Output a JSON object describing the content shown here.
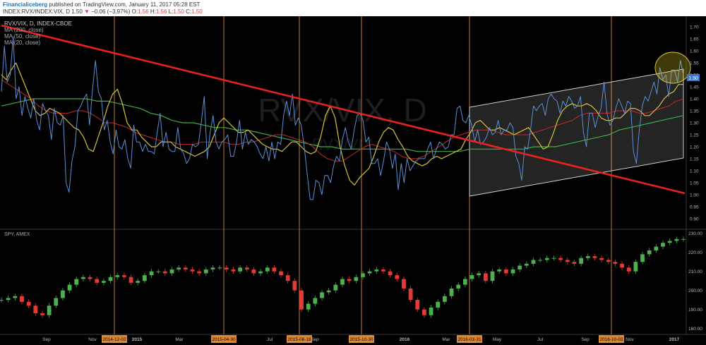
{
  "header": {
    "brand": "Financialiceberg",
    "published": "published on TradingView.com, January 11, 2017 05:28 EST",
    "symbol": "INDEX:RVX/INDEX:VIX, D",
    "last": "1.50",
    "change": "−0.06 (−3.97%)",
    "o_label": "O:",
    "o_val": "1.56",
    "h_label": "H:",
    "h_val": "1.56",
    "l_label": "L:",
    "l_val": "1.50",
    "c_label": "C:",
    "c_val": "1.50"
  },
  "chart_data": [
    {
      "type": "line",
      "pane": "top",
      "title": "RVX/VIX, D, INDEX-CBOE",
      "watermark": "RVX/VIX, D",
      "watermark_sub": "RVX/VIX",
      "legend": [
        "MA (200, close)",
        "MA (50, close)",
        "MA (20, close)"
      ],
      "ylim": [
        0.87,
        1.73
      ],
      "yticks": [
        "1.70",
        "1.65",
        "1.60",
        "1.55",
        "1.50",
        "1.45",
        "1.40",
        "1.35",
        "1.30",
        "1.25",
        "1.20",
        "1.15",
        "1.10",
        "1.05",
        "1.00",
        "0.95",
        "0.90"
      ],
      "price_tag": "1.50",
      "colors": {
        "ratio": "#5b8fd6",
        "ma20": "#d4c13a",
        "ma50": "#c62828",
        "ma200": "#3fae3f",
        "trend": "#e82020",
        "channel": "#cccccc"
      },
      "series": [
        {
          "name": "RVX/VIX",
          "values": [
            1.43,
            1.62,
            1.47,
            1.5,
            1.66,
            1.4,
            1.45,
            1.33,
            1.41,
            1.36,
            1.32,
            1.4,
            1.31,
            1.27,
            1.38,
            1.35,
            1.33,
            1.23,
            1.36,
            1.3,
            1.29,
            1.33,
            1.05,
            1.01,
            1.14,
            1.2,
            1.35,
            1.37,
            1.4,
            1.42,
            1.29,
            1.44,
            1.56,
            1.43,
            1.4,
            1.27,
            1.31,
            1.22,
            1.17,
            1.27,
            1.2,
            1.19,
            1.23,
            1.15,
            1.11,
            1.29,
            1.22,
            1.22,
            1.18,
            1.21,
            1.18,
            1.18,
            1.17,
            1.26,
            1.34,
            1.2,
            1.26,
            1.19,
            1.18,
            1.18,
            1.28,
            1.19,
            1.17,
            1.13,
            1.15,
            1.21,
            1.2,
            1.21,
            1.3,
            1.41,
            1.15,
            1.26,
            1.33,
            1.22,
            1.19,
            1.22,
            1.23,
            1.25,
            1.16,
            1.16,
            1.22,
            1.31,
            1.19,
            1.26,
            1.21,
            1.23,
            1.22,
            1.2,
            1.17,
            1.15,
            1.2,
            1.14,
            1.22,
            1.15,
            1.22,
            1.21,
            1.33,
            1.39,
            1.33,
            1.42,
            1.29,
            1.32,
            1.29,
            1.2,
            1.09,
            0.98,
            0.98,
            1.06,
            1.05,
            1.0,
            1.08,
            1.08,
            1.05,
            1.12,
            1.16,
            1.14,
            1.23,
            1.28,
            1.22,
            1.19,
            1.27,
            1.33,
            1.34,
            1.31,
            1.22,
            1.24,
            1.13,
            1.13,
            1.15,
            1.08,
            1.14,
            1.22,
            1.19,
            1.11,
            1.17,
            1.02,
            1.13,
            1.05,
            1.15,
            1.1,
            1.12,
            1.14,
            1.15,
            1.15,
            1.15,
            1.19,
            1.22,
            1.15,
            1.19,
            1.22,
            1.21,
            1.19,
            1.2,
            1.25,
            1.25,
            1.36,
            1.37,
            1.31,
            1.3,
            1.33,
            1.29,
            1.22,
            1.27,
            1.21,
            1.22,
            1.24,
            1.28,
            1.25,
            1.26,
            1.31,
            1.25,
            1.27,
            1.27,
            1.3,
            1.28,
            1.16,
            1.13,
            1.06,
            1.2,
            1.19,
            1.27,
            1.37,
            1.35,
            1.37,
            1.38,
            1.33,
            1.4,
            1.42,
            1.4,
            1.39,
            1.34,
            1.39,
            1.37,
            1.41,
            1.39,
            1.36,
            1.37,
            1.41,
            1.26,
            1.2,
            1.34,
            1.34,
            1.28,
            1.33,
            1.36,
            1.47,
            1.34,
            1.29,
            1.31,
            1.36,
            1.4,
            1.37,
            1.34,
            1.39,
            1.38,
            1.18,
            1.13,
            1.27,
            1.37,
            1.41,
            1.39,
            1.43,
            1.47,
            1.42,
            1.53,
            1.48,
            1.5,
            1.41,
            1.52,
            1.52,
            1.47,
            1.56,
            1.5
          ]
        },
        {
          "name": "MA (20, close)",
          "values": [
            1.5,
            1.48,
            1.52,
            1.55,
            1.5,
            1.45,
            1.4,
            1.35,
            1.33,
            1.34,
            1.36,
            1.35,
            1.34,
            1.32,
            1.3,
            1.28,
            1.27,
            1.24,
            1.19,
            1.18,
            1.24,
            1.3,
            1.37,
            1.42,
            1.44,
            1.38,
            1.3,
            1.27,
            1.27,
            1.24,
            1.22,
            1.2,
            1.2,
            1.22,
            1.22,
            1.22,
            1.2,
            1.19,
            1.18,
            1.17,
            1.16,
            1.17,
            1.18,
            1.2,
            1.25,
            1.3,
            1.32,
            1.3,
            1.28,
            1.26,
            1.26,
            1.27,
            1.25,
            1.23,
            1.21,
            1.2,
            1.19,
            1.19,
            1.18,
            1.2,
            1.22,
            1.22,
            1.2,
            1.18,
            1.17,
            1.18,
            1.24,
            1.33,
            1.37,
            1.32,
            1.2,
            1.12,
            1.06,
            1.04,
            1.07,
            1.09,
            1.11,
            1.16,
            1.22,
            1.26,
            1.28,
            1.27,
            1.23,
            1.2,
            1.16,
            1.14,
            1.13,
            1.12,
            1.13,
            1.15,
            1.16,
            1.15,
            1.16,
            1.17,
            1.18,
            1.19,
            1.23,
            1.26,
            1.3,
            1.31,
            1.29,
            1.27,
            1.27,
            1.28,
            1.27,
            1.26,
            1.25,
            1.26,
            1.27,
            1.28,
            1.25,
            1.22,
            1.19,
            1.2,
            1.25,
            1.31,
            1.35,
            1.37,
            1.38,
            1.37,
            1.37,
            1.38,
            1.37,
            1.35,
            1.32,
            1.31,
            1.31,
            1.32,
            1.32,
            1.34,
            1.36,
            1.36,
            1.35,
            1.33,
            1.33,
            1.35,
            1.37,
            1.4,
            1.42,
            1.43,
            1.46,
            1.46
          ]
        },
        {
          "name": "MA (50, close)",
          "values": [
            1.48,
            1.46,
            1.44,
            1.42,
            1.4,
            1.37,
            1.35,
            1.34,
            1.34,
            1.34,
            1.35,
            1.35,
            1.34,
            1.32,
            1.3,
            1.3,
            1.29,
            1.28,
            1.26,
            1.25,
            1.24,
            1.23,
            1.22,
            1.22,
            1.21,
            1.21,
            1.21,
            1.22,
            1.22,
            1.22,
            1.22,
            1.21,
            1.21,
            1.22,
            1.22,
            1.23,
            1.24,
            1.25,
            1.25,
            1.24,
            1.23,
            1.22,
            1.2,
            1.17,
            1.15,
            1.14,
            1.14,
            1.16,
            1.18,
            1.2,
            1.21,
            1.2,
            1.19,
            1.18,
            1.16,
            1.15,
            1.15,
            1.16,
            1.18,
            1.2,
            1.22,
            1.24,
            1.25,
            1.26,
            1.27,
            1.27,
            1.27,
            1.26,
            1.25,
            1.25,
            1.25,
            1.25,
            1.26,
            1.27,
            1.28,
            1.29,
            1.3,
            1.31,
            1.33,
            1.34,
            1.34,
            1.34,
            1.34,
            1.35,
            1.35,
            1.35,
            1.34,
            1.34,
            1.35,
            1.36,
            1.37,
            1.39,
            1.4
          ]
        },
        {
          "name": "MA (200, close)",
          "values": [
            1.37,
            1.38,
            1.39,
            1.4,
            1.4,
            1.4,
            1.4,
            1.4,
            1.4,
            1.39,
            1.39,
            1.38,
            1.37,
            1.36,
            1.34,
            1.33,
            1.31,
            1.3,
            1.3,
            1.29,
            1.28,
            1.28,
            1.27,
            1.27,
            1.26,
            1.25,
            1.24,
            1.23,
            1.22,
            1.21,
            1.2,
            1.2,
            1.19,
            1.19,
            1.19,
            1.19,
            1.19,
            1.19,
            1.19,
            1.18,
            1.18,
            1.18,
            1.18,
            1.18,
            1.19,
            1.19,
            1.19,
            1.19,
            1.19,
            1.19,
            1.2,
            1.2,
            1.2,
            1.21,
            1.22,
            1.23,
            1.24,
            1.25,
            1.27,
            1.28,
            1.29,
            1.3,
            1.31,
            1.32,
            1.33
          ]
        }
      ]
    },
    {
      "type": "bar",
      "pane": "bottom",
      "title": "SPY, AMEX",
      "ylim": [
        178,
        231
      ],
      "yticks": [
        "230.00",
        "220.00",
        "210.00",
        "200.00",
        "190.00",
        "180.00"
      ],
      "colors": {
        "up": "#4caf50",
        "down": "#e53935"
      },
      "values": [
        195,
        196,
        197,
        194,
        192,
        188,
        187,
        192,
        196,
        200,
        203,
        206,
        207,
        206,
        204,
        205,
        207,
        208,
        207,
        204,
        205,
        208,
        210,
        210,
        209,
        211,
        212,
        211,
        210,
        209,
        211,
        212,
        212,
        211,
        210,
        212,
        211,
        209,
        210,
        212,
        210,
        208,
        205,
        200,
        190,
        193,
        196,
        199,
        200,
        203,
        206,
        205,
        207,
        209,
        210,
        211,
        210,
        208,
        206,
        201,
        195,
        190,
        187,
        191,
        194,
        197,
        201,
        203,
        206,
        208,
        209,
        205,
        210,
        211,
        209,
        211,
        213,
        214,
        216,
        216,
        217,
        217,
        216,
        215,
        214,
        217,
        218,
        217,
        216,
        215,
        214,
        212,
        210,
        215,
        219,
        221,
        223,
        225,
        226,
        227,
        227
      ]
    }
  ],
  "x_labels": [
    "Sep",
    "Nov",
    "2014-12-02",
    "2015",
    "Mar",
    "2015-04-30",
    "Jul",
    "2015-08-18",
    "Sep",
    "2015-10-30",
    "2016",
    "Mar",
    "2016-03-31",
    "May",
    "Jul",
    "Sep",
    "2016-10-03",
    "Nov",
    "2017"
  ],
  "marker_dates": [
    "2014-12-02",
    "2015-04-30",
    "2015-08-18",
    "2015-10-30",
    "2016-03-31",
    "2016-10-03"
  ]
}
